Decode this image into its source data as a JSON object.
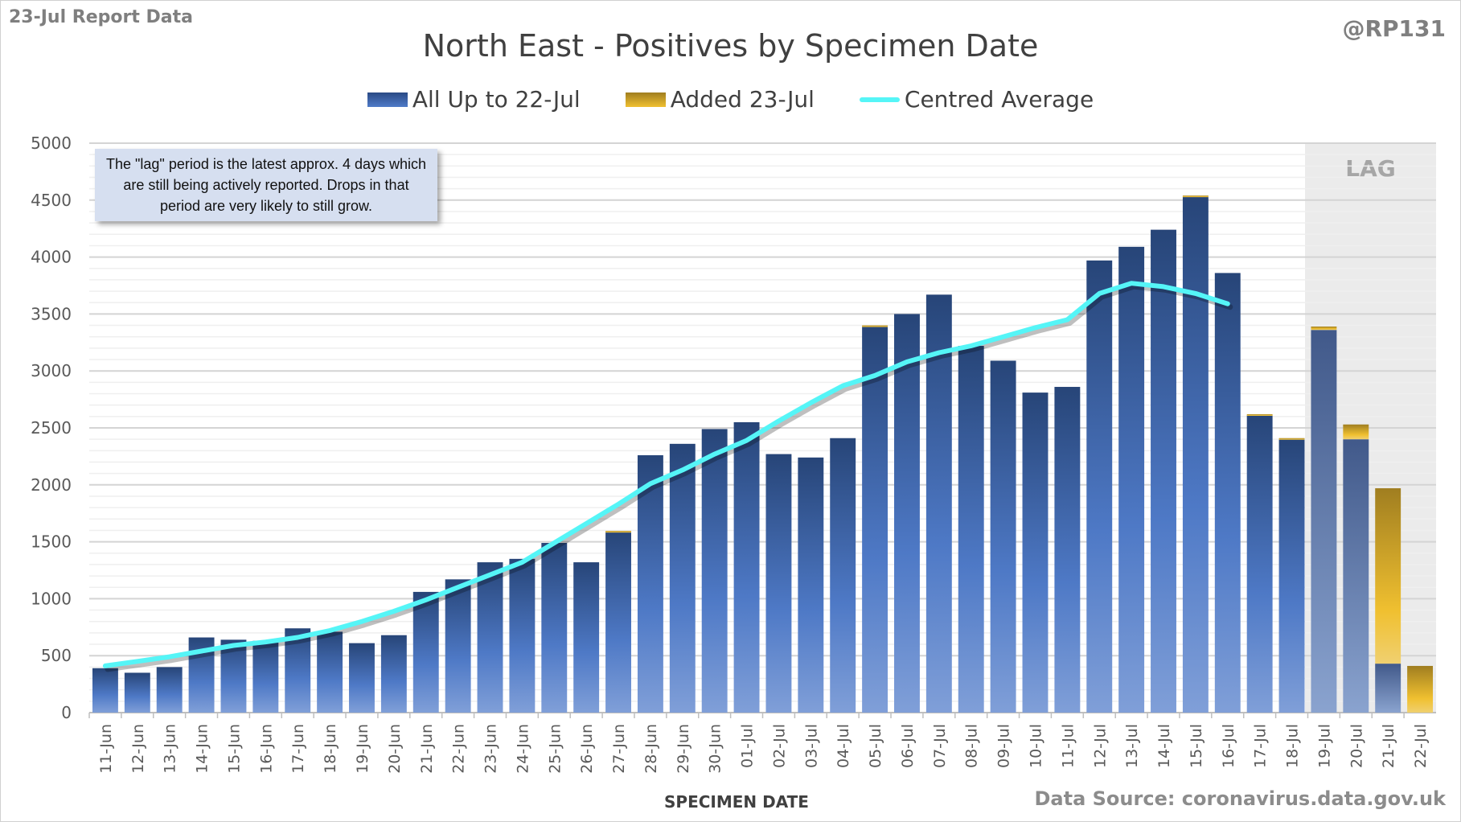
{
  "header": {
    "report": "23-Jul Report Data",
    "handle": "@RP131",
    "source": "Data Source: coronavirus.data.gov.uk"
  },
  "note": "The \"lag\" period is the latest approx. 4 days which are still being actively reported.  Drops in that period are very likely to still grow.",
  "lag_label": "LAG",
  "chart_data": {
    "type": "bar",
    "title": "North East - Positives by Specimen Date",
    "xlabel": "SPECIMEN DATE",
    "ylabel": "",
    "ylim": [
      0,
      5000
    ],
    "yticks": [
      0,
      500,
      1000,
      1500,
      2000,
      2500,
      3000,
      3500,
      4000,
      4500,
      5000
    ],
    "grid": true,
    "legend_position": "top",
    "lag_start": "19-Jul",
    "categories": [
      "11-Jun",
      "12-Jun",
      "13-Jun",
      "14-Jun",
      "15-Jun",
      "16-Jun",
      "17-Jun",
      "18-Jun",
      "19-Jun",
      "20-Jun",
      "21-Jun",
      "22-Jun",
      "23-Jun",
      "24-Jun",
      "25-Jun",
      "26-Jun",
      "27-Jun",
      "28-Jun",
      "29-Jun",
      "30-Jun",
      "01-Jul",
      "02-Jul",
      "03-Jul",
      "04-Jul",
      "05-Jul",
      "06-Jul",
      "07-Jul",
      "08-Jul",
      "09-Jul",
      "10-Jul",
      "11-Jul",
      "12-Jul",
      "13-Jul",
      "14-Jul",
      "15-Jul",
      "16-Jul",
      "17-Jul",
      "18-Jul",
      "19-Jul",
      "20-Jul",
      "21-Jul",
      "22-Jul"
    ],
    "series": [
      {
        "name": "All Up to 22-Jul",
        "type": "bar",
        "color": "#3a64ad",
        "values": [
          390,
          350,
          400,
          660,
          640,
          630,
          740,
          710,
          610,
          680,
          1060,
          1170,
          1320,
          1350,
          1490,
          1320,
          1590,
          2260,
          2360,
          2490,
          2550,
          2270,
          2240,
          2410,
          3390,
          3500,
          3670,
          3220,
          3090,
          2810,
          2860,
          3970,
          4090,
          4240,
          4530,
          3860,
          2610,
          2400,
          3360,
          2400,
          430,
          0
        ]
      },
      {
        "name": "Added 23-Jul",
        "type": "bar",
        "color": "#e8b52a",
        "values": [
          0,
          0,
          0,
          0,
          0,
          0,
          0,
          0,
          0,
          0,
          0,
          0,
          0,
          0,
          0,
          0,
          5,
          0,
          0,
          0,
          0,
          0,
          0,
          0,
          10,
          0,
          0,
          0,
          0,
          0,
          0,
          0,
          0,
          0,
          10,
          0,
          10,
          10,
          30,
          130,
          1540,
          410
        ]
      },
      {
        "name": "Centred Average",
        "type": "line",
        "color": "#55f5f7",
        "values": [
          410,
          450,
          490,
          540,
          590,
          620,
          660,
          720,
          800,
          890,
          990,
          1100,
          1210,
          1320,
          1490,
          1660,
          1830,
          2010,
          2130,
          2270,
          2390,
          2560,
          2720,
          2870,
          2960,
          3080,
          3160,
          3220,
          3300,
          3380,
          3450,
          3680,
          3770,
          3740,
          3680,
          3590,
          null,
          null,
          null,
          null,
          null,
          null
        ]
      }
    ]
  }
}
